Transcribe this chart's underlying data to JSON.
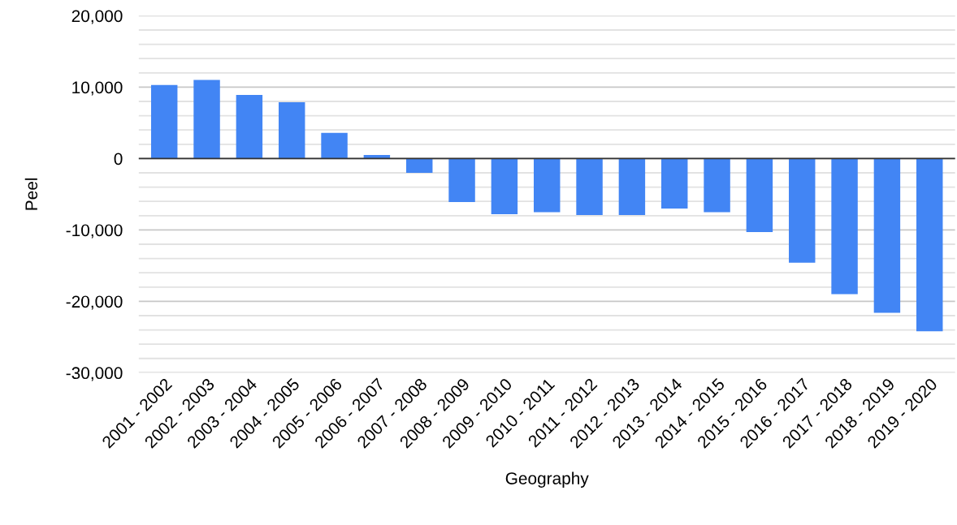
{
  "chart_data": {
    "type": "bar",
    "xlabel": "Geography",
    "ylabel": "Peel",
    "categories": [
      "2001 - 2002",
      "2002 - 2003",
      "2003 - 2004",
      "2004 - 2005",
      "2005 - 2006",
      "2006 - 2007",
      "2007 - 2008",
      "2008 - 2009",
      "2009 - 2010",
      "2010 - 2011",
      "2011 - 2012",
      "2012 - 2013",
      "2013 - 2014",
      "2014 - 2015",
      "2015 - 2016",
      "2016 - 2017",
      "2017 - 2018",
      "2018 - 2019",
      "2019 - 2020"
    ],
    "values": [
      10300,
      11000,
      8900,
      7900,
      3600,
      500,
      -2000,
      -6100,
      -7800,
      -7500,
      -7900,
      -7900,
      -7000,
      -7500,
      -10300,
      -14600,
      -19000,
      -21600,
      -24200
    ],
    "color": "#4285f4",
    "ylim": [
      -30000,
      20000
    ],
    "yticks": [
      {
        "value": -30000,
        "label": "-30,000"
      },
      {
        "value": -28000,
        "label": null
      },
      {
        "value": -26000,
        "label": null
      },
      {
        "value": -24000,
        "label": null
      },
      {
        "value": -22000,
        "label": null
      },
      {
        "value": -20000,
        "label": "-20,000"
      },
      {
        "value": -18000,
        "label": null
      },
      {
        "value": -16000,
        "label": null
      },
      {
        "value": -14000,
        "label": null
      },
      {
        "value": -12000,
        "label": null
      },
      {
        "value": -10000,
        "label": "-10,000"
      },
      {
        "value": -8000,
        "label": null
      },
      {
        "value": -6000,
        "label": null
      },
      {
        "value": -4000,
        "label": null
      },
      {
        "value": -2000,
        "label": null
      },
      0,
      {
        "value": 2000,
        "label": null
      },
      {
        "value": 4000,
        "label": null
      },
      {
        "value": 6000,
        "label": null
      },
      {
        "value": 8000,
        "label": null
      },
      {
        "value": 10000,
        "label": "10,000"
      },
      {
        "value": 12000,
        "label": null
      },
      {
        "value": 14000,
        "label": null
      },
      {
        "value": 16000,
        "label": null
      },
      {
        "value": 18000,
        "label": null
      },
      {
        "value": 20000,
        "label": "20,000"
      }
    ],
    "grid": "y"
  }
}
